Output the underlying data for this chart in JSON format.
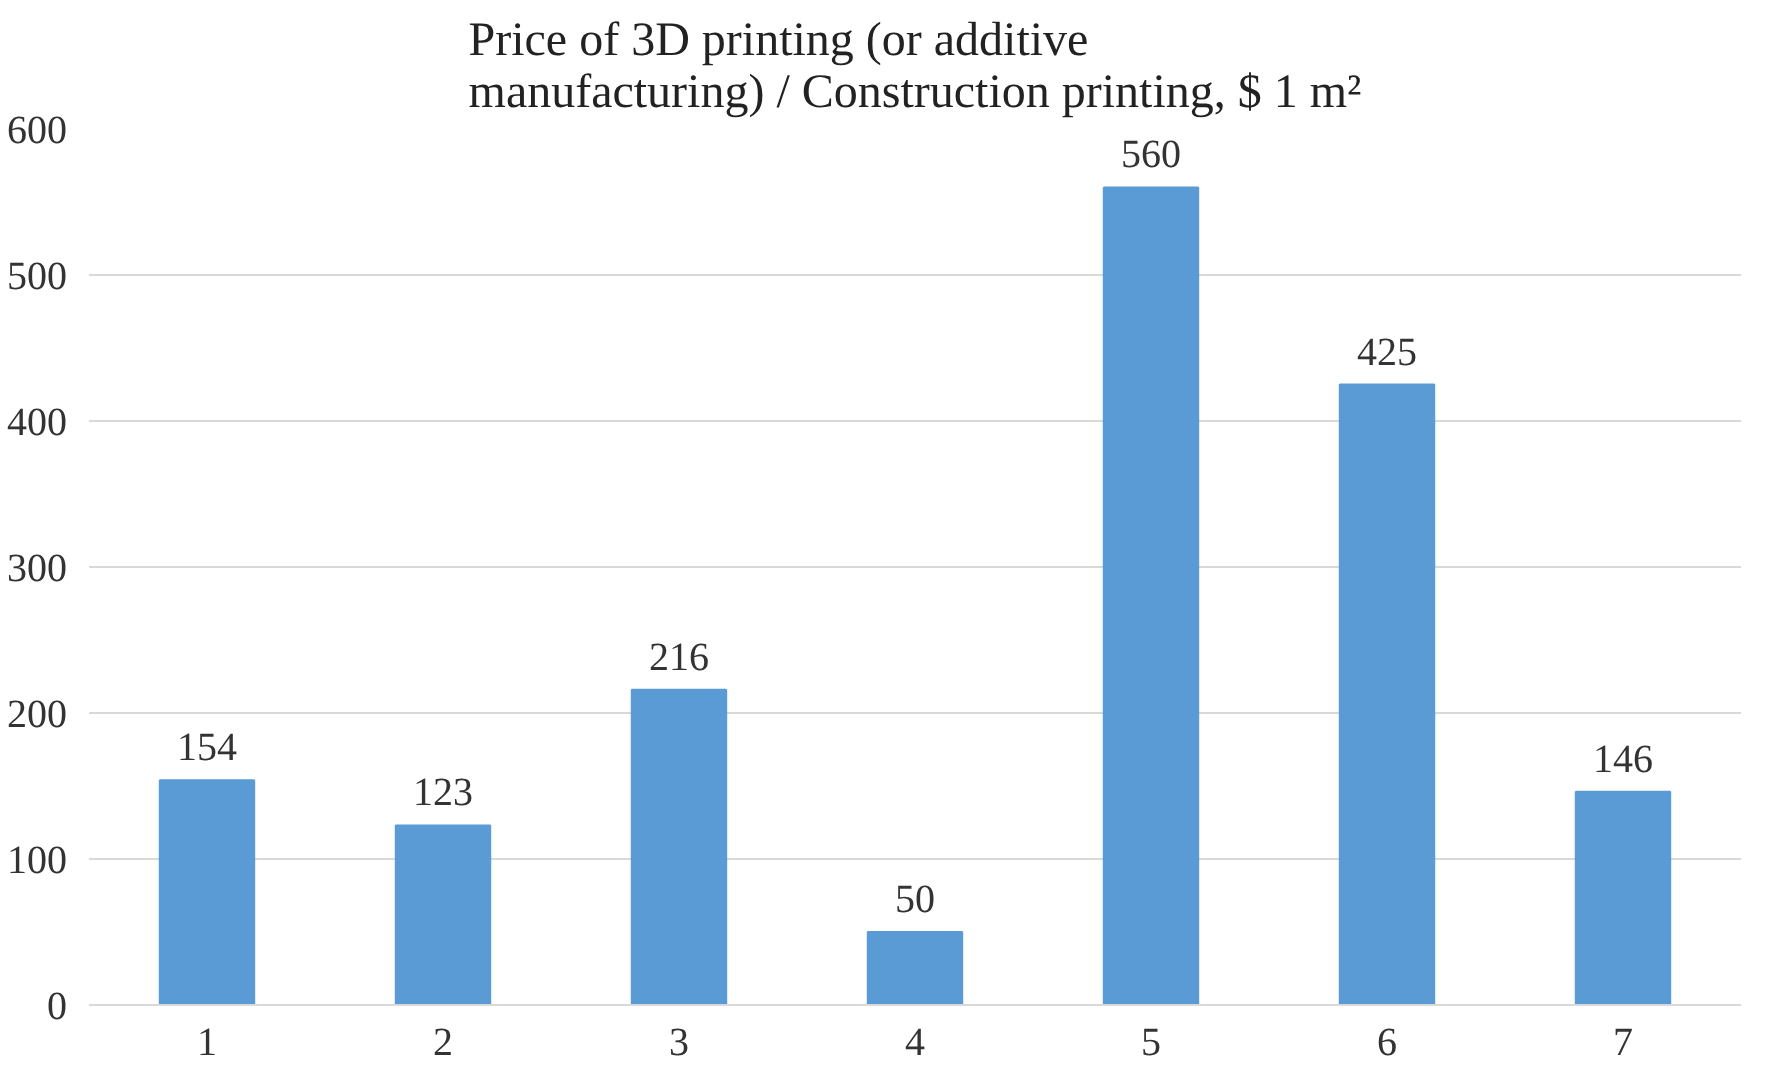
{
  "chart_data": {
    "type": "bar",
    "title": "Price of 3D printing (or additive\nmanufacturing) / Construction printing, $ 1 m²",
    "categories": [
      "1",
      "2",
      "3",
      "4",
      "5",
      "6",
      "7"
    ],
    "values": [
      154,
      123,
      216,
      50,
      560,
      425,
      146
    ],
    "color": "#5b9bd5",
    "ylim": [
      0,
      600
    ],
    "yticks": [
      0,
      100,
      200,
      300,
      400,
      500,
      600
    ],
    "grid": "y",
    "data_labels": true
  }
}
